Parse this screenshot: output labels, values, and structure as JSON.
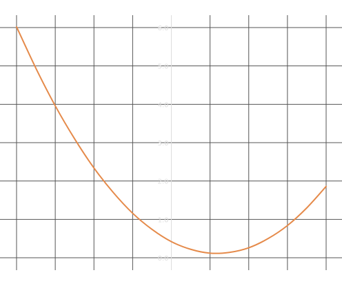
{
  "chart_data": {
    "type": "line",
    "title": "",
    "xlabel": "",
    "ylabel": "",
    "xlim": [
      -4,
      4
    ],
    "ylim": [
      0,
      6
    ],
    "grid": true,
    "series": [
      {
        "color": "#e58a4a",
        "x": [
          -4,
          -3.5,
          -3,
          -2.5,
          -2,
          -1.5,
          -1,
          -0.5,
          0,
          0.5,
          1,
          1.5,
          2,
          2.5,
          3,
          3.5,
          4
        ],
        "y": [
          6.02,
          4.94,
          3.96,
          3.1,
          2.34,
          1.7,
          1.16,
          0.74,
          0.42,
          0.22,
          0.12,
          0.14,
          0.26,
          0.5,
          0.84,
          1.3,
          1.86
        ]
      }
    ],
    "y_ticks": [
      {
        "value": 0,
        "label": "0.0"
      },
      {
        "value": 1,
        "label": "1.0"
      },
      {
        "value": 2,
        "label": "2.0"
      },
      {
        "value": 3,
        "label": "3.0"
      },
      {
        "value": 4,
        "label": "4.0"
      },
      {
        "value": 5,
        "label": "5.0"
      },
      {
        "value": 6,
        "label": "6.0"
      }
    ],
    "x_gridlines": [
      -4,
      -3,
      -2,
      -1,
      0,
      1,
      2,
      3,
      4
    ]
  }
}
